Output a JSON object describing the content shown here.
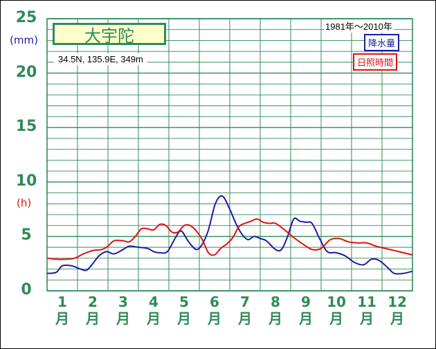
{
  "chart_data": {
    "type": "line",
    "station": "大宇陀",
    "location": "34.5N,  135.9E,  349m",
    "period": "1981年〜2010年",
    "ylim": [
      0,
      25
    ],
    "yticks": [
      "0",
      "5",
      "10",
      "15",
      "20",
      "25"
    ],
    "ylabel_left": "(mm)",
    "ylabel_right": "(h)",
    "x_labels": [
      {
        "num": "1",
        "unit": "月"
      },
      {
        "num": "2",
        "unit": "月"
      },
      {
        "num": "3",
        "unit": "月"
      },
      {
        "num": "4",
        "unit": "月"
      },
      {
        "num": "5",
        "unit": "月"
      },
      {
        "num": "6",
        "unit": "月"
      },
      {
        "num": "7",
        "unit": "月"
      },
      {
        "num": "8",
        "unit": "月"
      },
      {
        "num": "9",
        "unit": "月"
      },
      {
        "num": "10",
        "unit": "月"
      },
      {
        "num": "11",
        "unit": "月"
      },
      {
        "num": "12",
        "unit": "月"
      }
    ],
    "series": [
      {
        "name": "降水量",
        "unit": "mm",
        "color": "#1a1aa6",
        "x": [
          0.5,
          0.8,
          1.0,
          1.3,
          1.6,
          1.8,
          2.0,
          2.2,
          2.45,
          2.7,
          3.0,
          3.2,
          3.5,
          3.8,
          4.0,
          4.2,
          4.45,
          4.7,
          4.9,
          5.15,
          5.4,
          5.6,
          5.8,
          6.0,
          6.15,
          6.3,
          6.5,
          6.7,
          6.9,
          7.1,
          7.3,
          7.5,
          7.7,
          8.0,
          8.2,
          8.4,
          8.6,
          8.8,
          9.0,
          9.2,
          9.45,
          9.7,
          10.0,
          10.3,
          10.6,
          10.9,
          11.15,
          11.4,
          11.7,
          11.9,
          12.2,
          12.5
        ],
        "y": [
          1.6,
          1.7,
          2.3,
          2.3,
          2.0,
          1.9,
          2.5,
          3.2,
          3.6,
          3.4,
          3.8,
          4.1,
          4.0,
          3.9,
          3.6,
          3.5,
          3.6,
          4.8,
          5.5,
          4.5,
          3.8,
          4.3,
          5.6,
          7.8,
          8.6,
          8.6,
          7.5,
          6.2,
          5.2,
          4.7,
          5.0,
          4.8,
          4.6,
          3.8,
          3.8,
          5.0,
          6.6,
          6.4,
          6.3,
          6.2,
          4.8,
          3.6,
          3.5,
          3.2,
          2.6,
          2.4,
          2.9,
          2.8,
          2.1,
          1.6,
          1.6,
          1.8
        ]
      },
      {
        "name": "日照時間",
        "unit": "h",
        "color": "#dd1111",
        "x": [
          0.5,
          0.8,
          1.1,
          1.4,
          1.7,
          2.0,
          2.3,
          2.5,
          2.7,
          3.0,
          3.2,
          3.4,
          3.6,
          3.8,
          4.0,
          4.2,
          4.4,
          4.6,
          4.8,
          5.0,
          5.2,
          5.4,
          5.6,
          5.8,
          6.0,
          6.2,
          6.4,
          6.6,
          6.8,
          7.0,
          7.2,
          7.4,
          7.6,
          7.8,
          8.0,
          8.3,
          8.6,
          8.9,
          9.2,
          9.5,
          9.8,
          10.1,
          10.4,
          10.7,
          11.0,
          11.3,
          11.6,
          11.9,
          12.2,
          12.5
        ],
        "y": [
          3.0,
          2.9,
          2.9,
          3.0,
          3.4,
          3.7,
          3.8,
          4.1,
          4.6,
          4.6,
          4.5,
          5.0,
          5.7,
          5.7,
          5.6,
          6.1,
          6.0,
          5.4,
          5.4,
          6.0,
          6.0,
          5.5,
          4.7,
          3.5,
          3.3,
          3.9,
          4.3,
          4.9,
          5.9,
          6.2,
          6.4,
          6.6,
          6.3,
          6.2,
          6.2,
          5.6,
          4.9,
          4.3,
          3.8,
          3.9,
          4.7,
          4.8,
          4.5,
          4.4,
          4.4,
          4.1,
          3.9,
          3.7,
          3.5,
          3.3
        ]
      }
    ],
    "grid": true,
    "legend_position": "top-right"
  }
}
